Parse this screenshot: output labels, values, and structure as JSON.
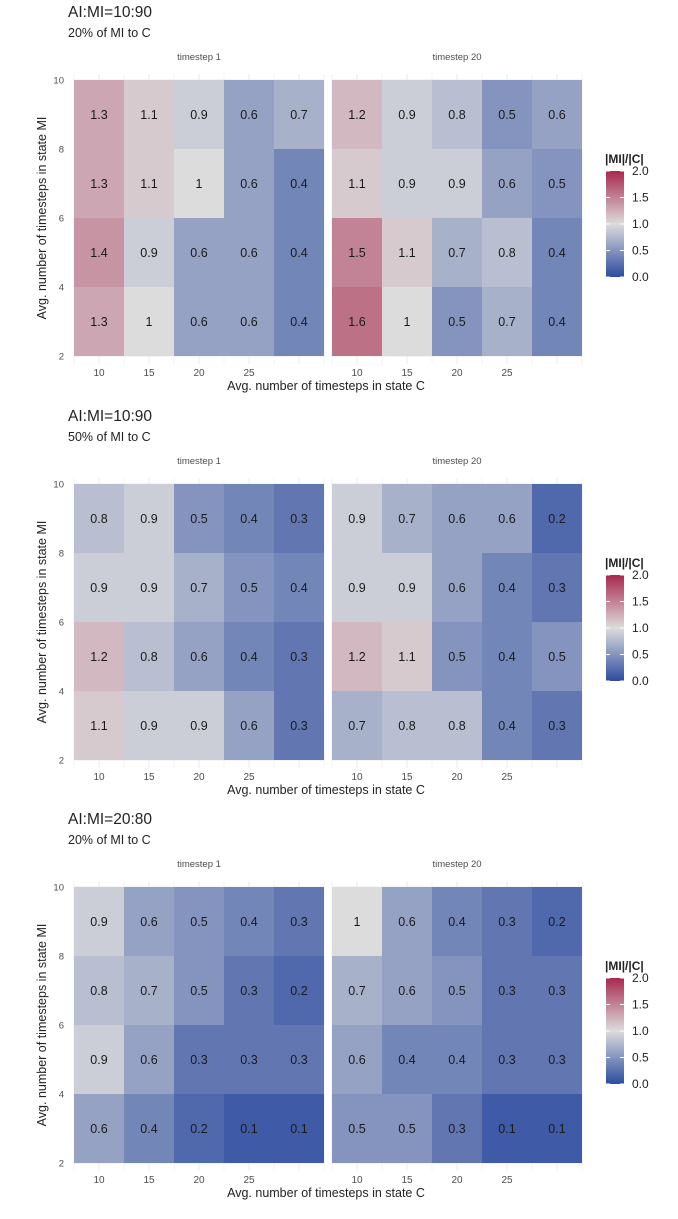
{
  "colors": {
    "low": "#2d4ca0",
    "mid": "#dcdcdc",
    "high": "#a8294f",
    "grid": "#ebebeb",
    "text": "#222222",
    "tick": "#4d4d4d"
  },
  "chart_data": [
    {
      "type": "heatmap",
      "title": "AI:MI=10:90",
      "subtitle": "20% of MI to C",
      "xlabel": "Avg. number of timesteps in state C",
      "ylabel": "Avg. number of timesteps in state MI",
      "x_ticks": [
        "10",
        "15",
        "20",
        "25"
      ],
      "y_ticks": [
        "2",
        "4",
        "6",
        "8",
        "10"
      ],
      "x": [
        10,
        15,
        20,
        25,
        30
      ],
      "y": [
        3,
        5,
        7,
        9
      ],
      "xlim": [
        7.5,
        32.5
      ],
      "ylim": [
        2,
        10
      ],
      "legend": {
        "title": "|MI|/|C|",
        "min": 0,
        "max": 2,
        "labels": [
          "2.0",
          "1.5",
          "1.0",
          "0.5",
          "0.0"
        ],
        "position": "right"
      },
      "panels": [
        {
          "name": "timestep 1",
          "values": [
            [
              1.3,
              1,
              0.6,
              0.6,
              0.4
            ],
            [
              1.4,
              0.9,
              0.6,
              0.6,
              0.4
            ],
            [
              1.3,
              1.1,
              1,
              0.6,
              0.4
            ],
            [
              1.3,
              1.1,
              0.9,
              0.6,
              0.7
            ]
          ]
        },
        {
          "name": "timestep 20",
          "values": [
            [
              1.6,
              1,
              0.5,
              0.7,
              0.4
            ],
            [
              1.5,
              1.1,
              0.7,
              0.8,
              0.4
            ],
            [
              1.1,
              0.9,
              0.9,
              0.6,
              0.5
            ],
            [
              1.2,
              0.9,
              0.8,
              0.5,
              0.6
            ]
          ]
        }
      ]
    },
    {
      "type": "heatmap",
      "title": "AI:MI=10:90",
      "subtitle": "50% of MI to C",
      "xlabel": "Avg. number of timesteps in state C",
      "ylabel": "Avg. number of timesteps in state MI",
      "x_ticks": [
        "10",
        "15",
        "20",
        "25"
      ],
      "y_ticks": [
        "2",
        "4",
        "6",
        "8",
        "10"
      ],
      "x": [
        10,
        15,
        20,
        25,
        30
      ],
      "y": [
        3,
        5,
        7,
        9
      ],
      "xlim": [
        7.5,
        32.5
      ],
      "ylim": [
        2,
        10
      ],
      "legend": {
        "title": "|MI|/|C|",
        "min": 0,
        "max": 2,
        "labels": [
          "2.0",
          "1.5",
          "1.0",
          "0.5",
          "0.0"
        ],
        "position": "right"
      },
      "panels": [
        {
          "name": "timestep 1",
          "values": [
            [
              1.1,
              0.9,
              0.9,
              0.6,
              0.3
            ],
            [
              1.2,
              0.8,
              0.6,
              0.4,
              0.3
            ],
            [
              0.9,
              0.9,
              0.7,
              0.5,
              0.4
            ],
            [
              0.8,
              0.9,
              0.5,
              0.4,
              0.3
            ]
          ]
        },
        {
          "name": "timestep 20",
          "values": [
            [
              0.7,
              0.8,
              0.8,
              0.4,
              0.3
            ],
            [
              1.2,
              1.1,
              0.5,
              0.4,
              0.5
            ],
            [
              0.9,
              0.9,
              0.6,
              0.4,
              0.3
            ],
            [
              0.9,
              0.7,
              0.6,
              0.6,
              0.2
            ]
          ]
        }
      ]
    },
    {
      "type": "heatmap",
      "title": "AI:MI=20:80",
      "subtitle": "20% of MI to C",
      "xlabel": "Avg. number of timesteps in state C",
      "ylabel": "Avg. number of timesteps in state MI",
      "x_ticks": [
        "10",
        "15",
        "20",
        "25"
      ],
      "y_ticks": [
        "2",
        "4",
        "6",
        "8",
        "10"
      ],
      "x": [
        10,
        15,
        20,
        25,
        30
      ],
      "y": [
        3,
        5,
        7,
        9
      ],
      "xlim": [
        7.5,
        32.5
      ],
      "ylim": [
        2,
        10
      ],
      "legend": {
        "title": "|MI|/|C|",
        "min": 0,
        "max": 2,
        "labels": [
          "2.0",
          "1.5",
          "1.0",
          "0.5",
          "0.0"
        ],
        "position": "right"
      },
      "panels": [
        {
          "name": "timestep 1",
          "values": [
            [
              0.6,
              0.4,
              0.2,
              0.1,
              0.1
            ],
            [
              0.9,
              0.6,
              0.3,
              0.3,
              0.3
            ],
            [
              0.8,
              0.7,
              0.5,
              0.3,
              0.2
            ],
            [
              0.9,
              0.6,
              0.5,
              0.4,
              0.3
            ]
          ]
        },
        {
          "name": "timestep 20",
          "values": [
            [
              0.5,
              0.5,
              0.3,
              0.1,
              0.1
            ],
            [
              0.6,
              0.4,
              0.4,
              0.3,
              0.3
            ],
            [
              0.7,
              0.6,
              0.5,
              0.3,
              0.3
            ],
            [
              1,
              0.6,
              0.4,
              0.3,
              0.2
            ]
          ]
        }
      ]
    }
  ]
}
